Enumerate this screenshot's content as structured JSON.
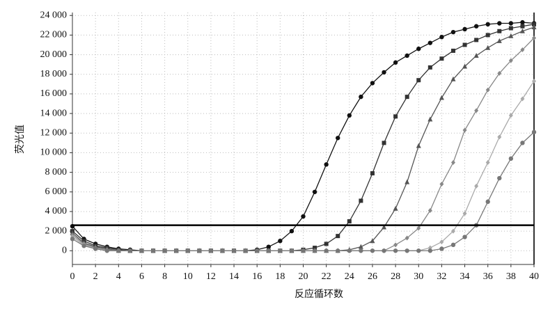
{
  "chart_data": {
    "type": "line",
    "xlabel": "反应循环数",
    "ylabel": "荧光值",
    "x": [
      0,
      1,
      2,
      3,
      4,
      5,
      6,
      7,
      8,
      9,
      10,
      11,
      12,
      13,
      14,
      15,
      16,
      17,
      18,
      19,
      20,
      21,
      22,
      23,
      24,
      25,
      26,
      27,
      28,
      29,
      30,
      31,
      32,
      33,
      34,
      35,
      36,
      37,
      38,
      39,
      40
    ],
    "series": [
      {
        "color": "#111111",
        "marker": "circle",
        "values": [
          2500,
          1200,
          700,
          400,
          200,
          100,
          0,
          0,
          0,
          0,
          0,
          0,
          0,
          0,
          0,
          0,
          100,
          400,
          1000,
          2000,
          3500,
          6000,
          8800,
          11500,
          13800,
          15700,
          17100,
          18200,
          19200,
          19900,
          20600,
          21200,
          21800,
          22300,
          22600,
          22900,
          23100,
          23200,
          23200,
          23300,
          23200
        ]
      },
      {
        "color": "#333333",
        "marker": "square",
        "values": [
          2000,
          1000,
          500,
          300,
          100,
          0,
          0,
          0,
          0,
          0,
          0,
          0,
          0,
          0,
          0,
          0,
          0,
          0,
          0,
          0,
          100,
          300,
          700,
          1500,
          3000,
          5100,
          7900,
          11000,
          13700,
          15700,
          17400,
          18700,
          19600,
          20400,
          21000,
          21500,
          22000,
          22400,
          22700,
          22900,
          23100
        ]
      },
      {
        "color": "#555555",
        "marker": "triangle",
        "values": [
          1800,
          800,
          400,
          200,
          0,
          0,
          0,
          0,
          0,
          0,
          0,
          0,
          0,
          0,
          0,
          0,
          0,
          0,
          0,
          0,
          0,
          0,
          0,
          0,
          100,
          400,
          1000,
          2400,
          4300,
          7000,
          10700,
          13400,
          15600,
          17500,
          18800,
          19900,
          20700,
          21400,
          21900,
          22400,
          22800
        ]
      },
      {
        "color": "#888888",
        "marker": "diamond",
        "values": [
          1600,
          700,
          300,
          100,
          0,
          0,
          0,
          0,
          0,
          0,
          0,
          0,
          0,
          0,
          0,
          0,
          0,
          0,
          0,
          0,
          0,
          0,
          0,
          0,
          0,
          0,
          0,
          0,
          600,
          1300,
          2300,
          4100,
          6800,
          9000,
          12300,
          14300,
          16400,
          18100,
          19400,
          20500,
          21700
        ]
      },
      {
        "color": "#aaaaaa",
        "marker": "diamond",
        "values": [
          1400,
          600,
          200,
          0,
          0,
          0,
          0,
          0,
          0,
          0,
          0,
          0,
          0,
          0,
          0,
          0,
          0,
          0,
          0,
          0,
          0,
          0,
          0,
          0,
          0,
          0,
          0,
          0,
          0,
          0,
          0,
          300,
          900,
          2000,
          3800,
          6600,
          9000,
          11600,
          13800,
          15500,
          17300
        ]
      },
      {
        "color": "#777777",
        "marker": "circle",
        "values": [
          1200,
          500,
          200,
          0,
          0,
          0,
          0,
          0,
          0,
          0,
          0,
          0,
          0,
          0,
          0,
          0,
          0,
          0,
          0,
          0,
          0,
          0,
          0,
          0,
          0,
          0,
          0,
          0,
          0,
          0,
          0,
          0,
          200,
          600,
          1400,
          2600,
          5000,
          7400,
          9400,
          11000,
          12100
        ]
      }
    ],
    "threshold": 2600,
    "xlim": [
      0,
      40
    ],
    "xticks": [
      0,
      2,
      4,
      6,
      8,
      10,
      12,
      14,
      16,
      18,
      20,
      22,
      24,
      26,
      28,
      30,
      32,
      34,
      36,
      38,
      40
    ],
    "ylim": [
      -1400,
      24300
    ],
    "yticks": [
      0,
      {
        "value": 2000,
        "label": "2 000"
      },
      {
        "value": 4000,
        "label": "4 000"
      },
      {
        "value": 6000,
        "label": "6 000"
      },
      {
        "value": 8000,
        "label": "8 000"
      },
      {
        "value": 10000,
        "label": "10 000"
      },
      {
        "value": 12000,
        "label": "12 000"
      },
      {
        "value": 14000,
        "label": "14 000"
      },
      {
        "value": 16000,
        "label": "16 000"
      },
      {
        "value": 18000,
        "label": "18 000"
      },
      {
        "value": 20000,
        "label": "20 000"
      },
      {
        "value": 22000,
        "label": "22 000"
      },
      {
        "value": 24000,
        "label": "24 000"
      }
    ],
    "grid": true
  }
}
